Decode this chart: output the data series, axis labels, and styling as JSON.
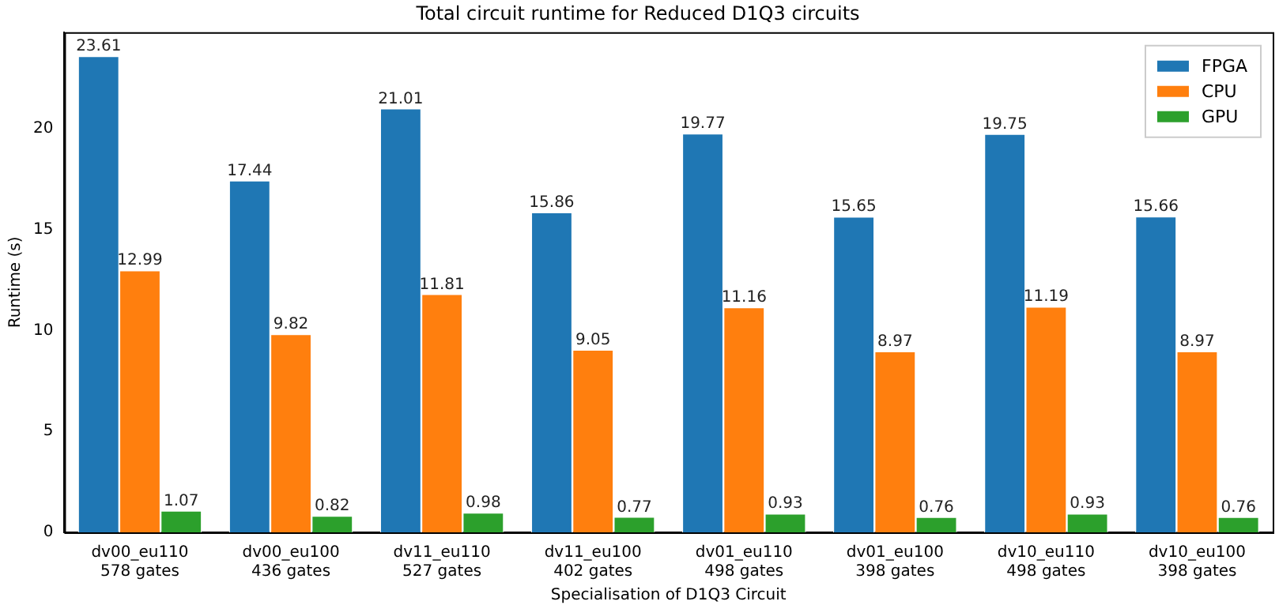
{
  "chart_data": {
    "type": "bar",
    "title": "Total circuit runtime for Reduced D1Q3 circuits",
    "xlabel": "Specialisation of D1Q3 Circuit",
    "ylabel": "Runtime (s)",
    "categories": [
      "dv00_eu110\n578 gates",
      "dv00_eu100\n436 gates",
      "dv11_eu110\n527 gates",
      "dv11_eu100\n402 gates",
      "dv01_eu110\n498 gates",
      "dv01_eu100\n398 gates",
      "dv10_eu110\n498 gates",
      "dv10_eu100\n398 gates"
    ],
    "series": [
      {
        "name": "FPGA",
        "color": "#1f77b4",
        "values": [
          23.61,
          17.44,
          21.01,
          15.86,
          19.77,
          15.65,
          19.75,
          15.66
        ]
      },
      {
        "name": "CPU",
        "color": "#ff7f0e",
        "values": [
          12.99,
          9.82,
          11.81,
          9.05,
          11.16,
          8.97,
          11.19,
          8.97
        ]
      },
      {
        "name": "GPU",
        "color": "#2ca02c",
        "values": [
          1.07,
          0.82,
          0.98,
          0.77,
          0.93,
          0.76,
          0.93,
          0.76
        ]
      }
    ],
    "ylim": [
      0,
      24.79
    ],
    "yticks": [
      0,
      5,
      10,
      15,
      20
    ],
    "data_labels": true,
    "legend": "top right",
    "grid": false
  }
}
